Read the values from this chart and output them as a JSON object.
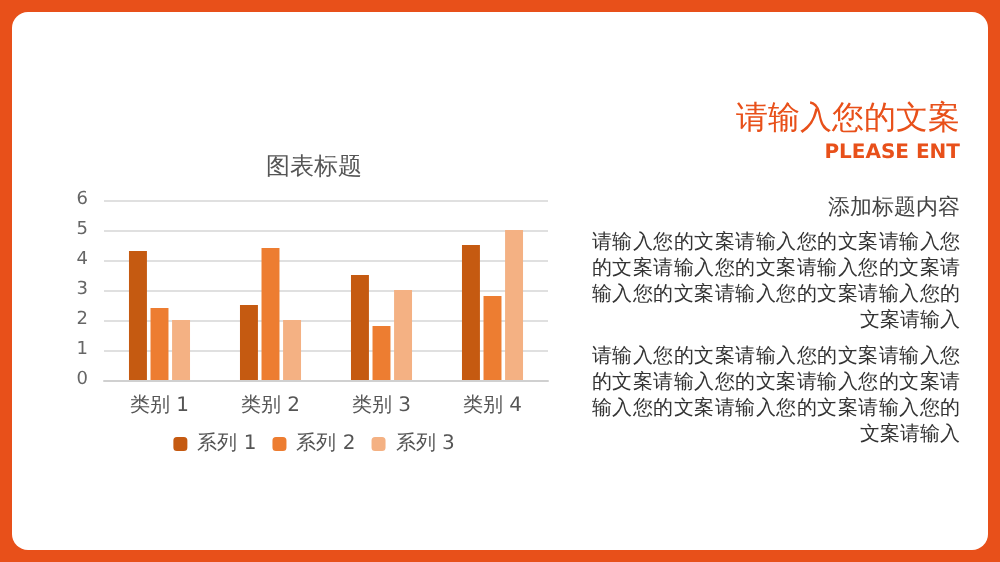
{
  "chart_data": {
    "type": "bar",
    "title": "图表标题",
    "categories": [
      "类别 1",
      "类别 2",
      "类别 3",
      "类别 4"
    ],
    "series": [
      {
        "name": "系列 1",
        "color": "#c55a11",
        "values": [
          4.3,
          2.5,
          3.5,
          4.5
        ]
      },
      {
        "name": "系列 2",
        "color": "#ed7d31",
        "values": [
          2.4,
          4.4,
          1.8,
          2.8
        ]
      },
      {
        "name": "系列 3",
        "color": "#f4b183",
        "values": [
          2,
          2,
          3,
          5
        ]
      }
    ],
    "ylim": [
      0,
      6
    ],
    "yticks": [
      0,
      1,
      2,
      3,
      4,
      5,
      6
    ],
    "grid": "y",
    "legend": "bottom",
    "annotations": [
      "请输入您的文案",
      "PLEASE ENT",
      "添加标题内容",
      "请输入您的文案请输入您的文案请输入您的文案请输入您的文案请输入您的文案请输入您的文案请输入您的文案请输入您的文案请输入",
      "请输入您的文案请输入您的文案请输入您的文案请输入您的文案请输入您的文案请输入您的文案请输入您的文案请输入您的文案请输入"
    ]
  }
}
